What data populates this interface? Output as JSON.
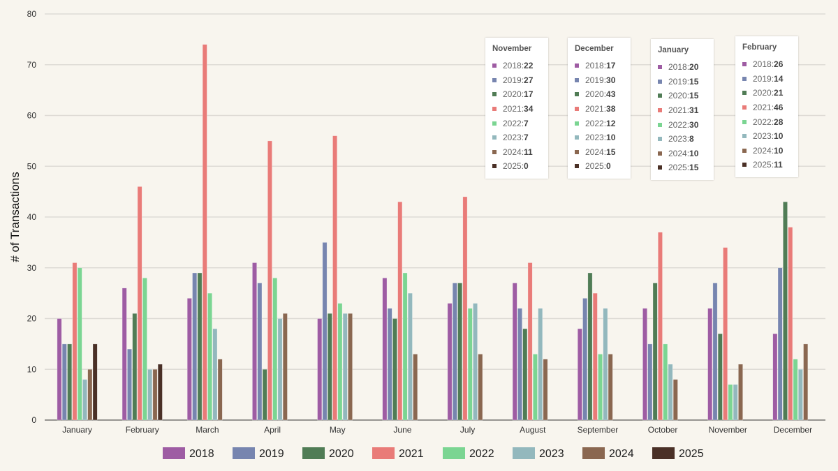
{
  "chart_data": {
    "type": "bar",
    "title": "",
    "xlabel": "",
    "ylabel": "# of Transactions",
    "ylim": [
      0,
      80
    ],
    "yticks": [
      0,
      10,
      20,
      30,
      40,
      50,
      60,
      70,
      80
    ],
    "grid": true,
    "legend": "bottom",
    "categories": [
      "January",
      "February",
      "March",
      "April",
      "May",
      "June",
      "July",
      "August",
      "September",
      "October",
      "November",
      "December"
    ],
    "series": [
      {
        "name": "2018",
        "color": "#9e5ca3",
        "values": [
          20,
          26,
          24,
          31,
          20,
          28,
          23,
          27,
          18,
          22,
          22,
          17
        ]
      },
      {
        "name": "2019",
        "color": "#7785af",
        "values": [
          15,
          14,
          29,
          27,
          35,
          22,
          27,
          22,
          24,
          15,
          27,
          30
        ]
      },
      {
        "name": "2020",
        "color": "#507c55",
        "values": [
          15,
          21,
          29,
          10,
          21,
          20,
          27,
          18,
          29,
          27,
          17,
          43
        ]
      },
      {
        "name": "2021",
        "color": "#e97b78",
        "values": [
          31,
          46,
          74,
          55,
          56,
          43,
          44,
          31,
          25,
          37,
          34,
          38
        ]
      },
      {
        "name": "2022",
        "color": "#7bd592",
        "values": [
          30,
          28,
          25,
          28,
          23,
          29,
          22,
          13,
          13,
          15,
          7,
          12
        ]
      },
      {
        "name": "2023",
        "color": "#93b8bd",
        "values": [
          8,
          10,
          18,
          20,
          21,
          25,
          23,
          22,
          22,
          11,
          7,
          10
        ]
      },
      {
        "name": "2024",
        "color": "#8a6750",
        "values": [
          10,
          10,
          12,
          21,
          21,
          13,
          13,
          12,
          13,
          8,
          11,
          15
        ]
      },
      {
        "name": "2025",
        "color": "#4a3026",
        "values": [
          15,
          11,
          0,
          0,
          0,
          0,
          0,
          0,
          0,
          0,
          0,
          0
        ]
      }
    ]
  },
  "tooltips": [
    {
      "title": "November",
      "rows": [
        [
          "2018",
          "22"
        ],
        [
          "2019",
          "27"
        ],
        [
          "2020",
          "17"
        ],
        [
          "2021",
          "34"
        ],
        [
          "2022",
          "7"
        ],
        [
          "2023",
          "7"
        ],
        [
          "2024",
          "11"
        ],
        [
          "2025",
          "0"
        ]
      ]
    },
    {
      "title": "December",
      "rows": [
        [
          "2018",
          "17"
        ],
        [
          "2019",
          "30"
        ],
        [
          "2020",
          "43"
        ],
        [
          "2021",
          "38"
        ],
        [
          "2022",
          "12"
        ],
        [
          "2023",
          "10"
        ],
        [
          "2024",
          "15"
        ],
        [
          "2025",
          "0"
        ]
      ]
    },
    {
      "title": "January",
      "rows": [
        [
          "2018",
          "20"
        ],
        [
          "2019",
          "15"
        ],
        [
          "2020",
          "15"
        ],
        [
          "2021",
          "31"
        ],
        [
          "2022",
          "30"
        ],
        [
          "2023",
          "8"
        ],
        [
          "2024",
          "10"
        ],
        [
          "2025",
          "15"
        ]
      ]
    },
    {
      "title": "February",
      "rows": [
        [
          "2018",
          "26"
        ],
        [
          "2019",
          "14"
        ],
        [
          "2020",
          "21"
        ],
        [
          "2021",
          "46"
        ],
        [
          "2022",
          "28"
        ],
        [
          "2023",
          "10"
        ],
        [
          "2024",
          "10"
        ],
        [
          "2025",
          "11"
        ]
      ]
    }
  ]
}
